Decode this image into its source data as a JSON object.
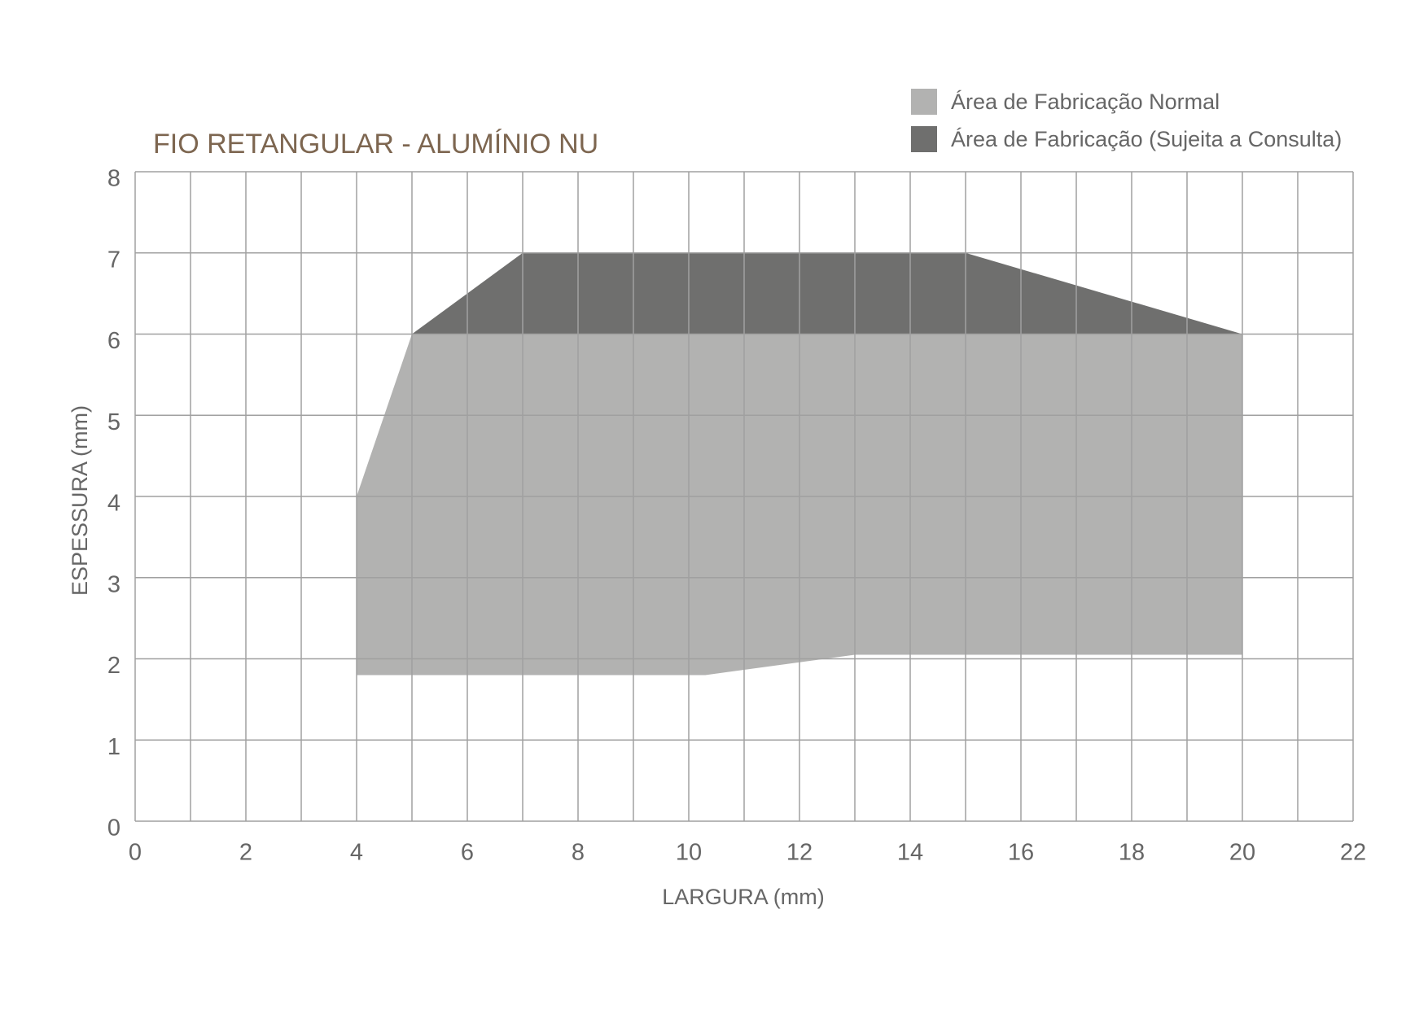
{
  "chart_data": {
    "type": "area",
    "title": "FIO RETANGULAR - ALUMÍNIO NU",
    "xlabel": "LARGURA (mm)",
    "ylabel": "ESPESSURA (mm)",
    "xlim": [
      0,
      22
    ],
    "ylim": [
      0,
      8
    ],
    "xticks": [
      0,
      2,
      4,
      6,
      8,
      10,
      12,
      14,
      16,
      18,
      20,
      22
    ],
    "xminorticks": [
      1,
      3,
      5,
      7,
      9,
      11,
      13,
      15,
      17,
      19,
      21
    ],
    "yticks": [
      0,
      1,
      2,
      3,
      4,
      5,
      6,
      7,
      8
    ],
    "grid": true,
    "legend": "top-right",
    "series": [
      {
        "name": "Área de Fabricação Normal",
        "color": "#b2b2b1",
        "x": [
          4,
          5,
          10.3,
          13,
          20
        ],
        "values": [
          4,
          6,
          6,
          6,
          6
        ],
        "lower": [
          1.8,
          1.8,
          1.8,
          2.05,
          2.05
        ]
      },
      {
        "name": "Área de Fabricação (Sujeita a Consulta)",
        "color": "#6f6f6e",
        "x": [
          5,
          7,
          15,
          20
        ],
        "values": [
          6,
          7,
          7,
          6
        ],
        "lower": [
          6,
          6,
          6,
          6
        ]
      }
    ]
  }
}
